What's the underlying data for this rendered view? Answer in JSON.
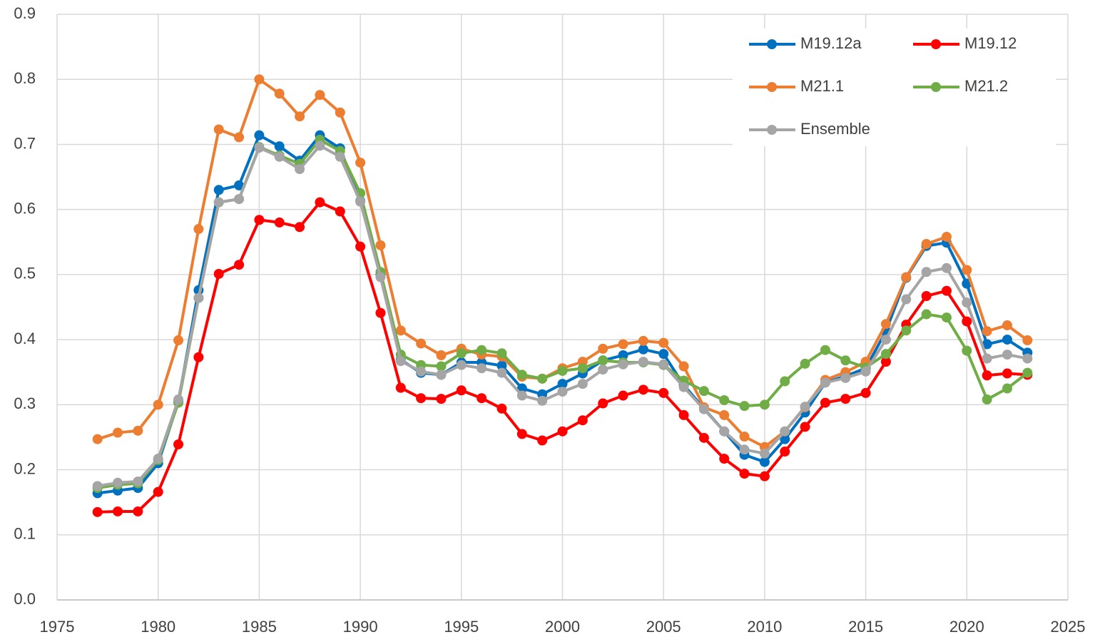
{
  "chart_data": {
    "type": "line",
    "x": [
      1977,
      1978,
      1979,
      1980,
      1981,
      1982,
      1983,
      1984,
      1985,
      1986,
      1987,
      1988,
      1989,
      1990,
      1991,
      1992,
      1993,
      1994,
      1995,
      1996,
      1997,
      1998,
      1999,
      2000,
      2001,
      2002,
      2003,
      2004,
      2005,
      2006,
      2007,
      2008,
      2009,
      2010,
      2011,
      2012,
      2013,
      2014,
      2015,
      2016,
      2017,
      2018,
      2019,
      2020,
      2021,
      2022,
      2023
    ],
    "series": [
      {
        "name": "M19.12a",
        "color": "#0070c0",
        "values": [
          0.164,
          0.168,
          0.172,
          0.21,
          0.305,
          0.476,
          0.63,
          0.637,
          0.714,
          0.697,
          0.675,
          0.714,
          0.694,
          0.613,
          0.5,
          0.369,
          0.349,
          0.346,
          0.365,
          0.365,
          0.36,
          0.325,
          0.316,
          0.332,
          0.348,
          0.368,
          0.376,
          0.385,
          0.378,
          0.33,
          0.294,
          0.259,
          0.223,
          0.212,
          0.247,
          0.288,
          0.334,
          0.344,
          0.356,
          0.413,
          0.495,
          0.544,
          0.549,
          0.486,
          0.393,
          0.4,
          0.38
        ]
      },
      {
        "name": "M19.12",
        "color": "#ff0000",
        "values": [
          0.135,
          0.136,
          0.136,
          0.166,
          0.239,
          0.373,
          0.501,
          0.515,
          0.584,
          0.58,
          0.573,
          0.611,
          0.597,
          0.543,
          0.441,
          0.326,
          0.31,
          0.309,
          0.322,
          0.31,
          0.294,
          0.255,
          0.245,
          0.259,
          0.276,
          0.302,
          0.314,
          0.323,
          0.318,
          0.284,
          0.249,
          0.217,
          0.194,
          0.19,
          0.228,
          0.266,
          0.303,
          0.309,
          0.318,
          0.366,
          0.423,
          0.467,
          0.475,
          0.428,
          0.345,
          0.348,
          0.346
        ]
      },
      {
        "name": "M21.1",
        "color": "#ed7d31",
        "values": [
          0.247,
          0.257,
          0.26,
          0.3,
          0.399,
          0.57,
          0.723,
          0.711,
          0.8,
          0.778,
          0.743,
          0.776,
          0.749,
          0.672,
          0.545,
          0.414,
          0.394,
          0.376,
          0.386,
          0.377,
          0.374,
          0.343,
          0.34,
          0.356,
          0.366,
          0.386,
          0.393,
          0.398,
          0.395,
          0.359,
          0.296,
          0.284,
          0.251,
          0.235,
          0.259,
          0.296,
          0.338,
          0.35,
          0.366,
          0.424,
          0.496,
          0.547,
          0.558,
          0.507,
          0.413,
          0.422,
          0.399
        ]
      },
      {
        "name": "M21.2",
        "color": "#70ad47",
        "values": [
          0.172,
          0.177,
          0.179,
          0.215,
          0.303,
          0.464,
          0.611,
          0.616,
          0.696,
          0.683,
          0.67,
          0.707,
          0.69,
          0.625,
          0.504,
          0.377,
          0.361,
          0.359,
          0.379,
          0.384,
          0.379,
          0.346,
          0.34,
          0.352,
          0.356,
          0.368,
          0.365,
          0.365,
          0.361,
          0.337,
          0.321,
          0.307,
          0.298,
          0.3,
          0.336,
          0.363,
          0.384,
          0.368,
          0.357,
          0.378,
          0.414,
          0.439,
          0.434,
          0.383,
          0.308,
          0.325,
          0.349
        ]
      },
      {
        "name": "Ensemble",
        "color": "#a5a5a5",
        "values": [
          0.175,
          0.18,
          0.182,
          0.217,
          0.308,
          0.464,
          0.611,
          0.616,
          0.695,
          0.681,
          0.662,
          0.698,
          0.681,
          0.612,
          0.496,
          0.367,
          0.351,
          0.346,
          0.361,
          0.356,
          0.349,
          0.314,
          0.306,
          0.32,
          0.332,
          0.354,
          0.362,
          0.366,
          0.362,
          0.327,
          0.293,
          0.259,
          0.231,
          0.225,
          0.259,
          0.297,
          0.334,
          0.341,
          0.351,
          0.4,
          0.462,
          0.504,
          0.51,
          0.457,
          0.371,
          0.377,
          0.371
        ]
      }
    ],
    "xlim": [
      1975,
      2025
    ],
    "xticks": [
      1975,
      1980,
      1985,
      1990,
      1995,
      2000,
      2005,
      2010,
      2015,
      2020,
      2025
    ],
    "ylim": [
      0,
      0.9
    ],
    "yticks": [
      {
        "value": 0,
        "label": "0.0"
      },
      0.1,
      0.2,
      0.3,
      0.4,
      0.5,
      0.6,
      0.7,
      0.8,
      0.9
    ],
    "grid": true,
    "legend": "upper-right"
  }
}
